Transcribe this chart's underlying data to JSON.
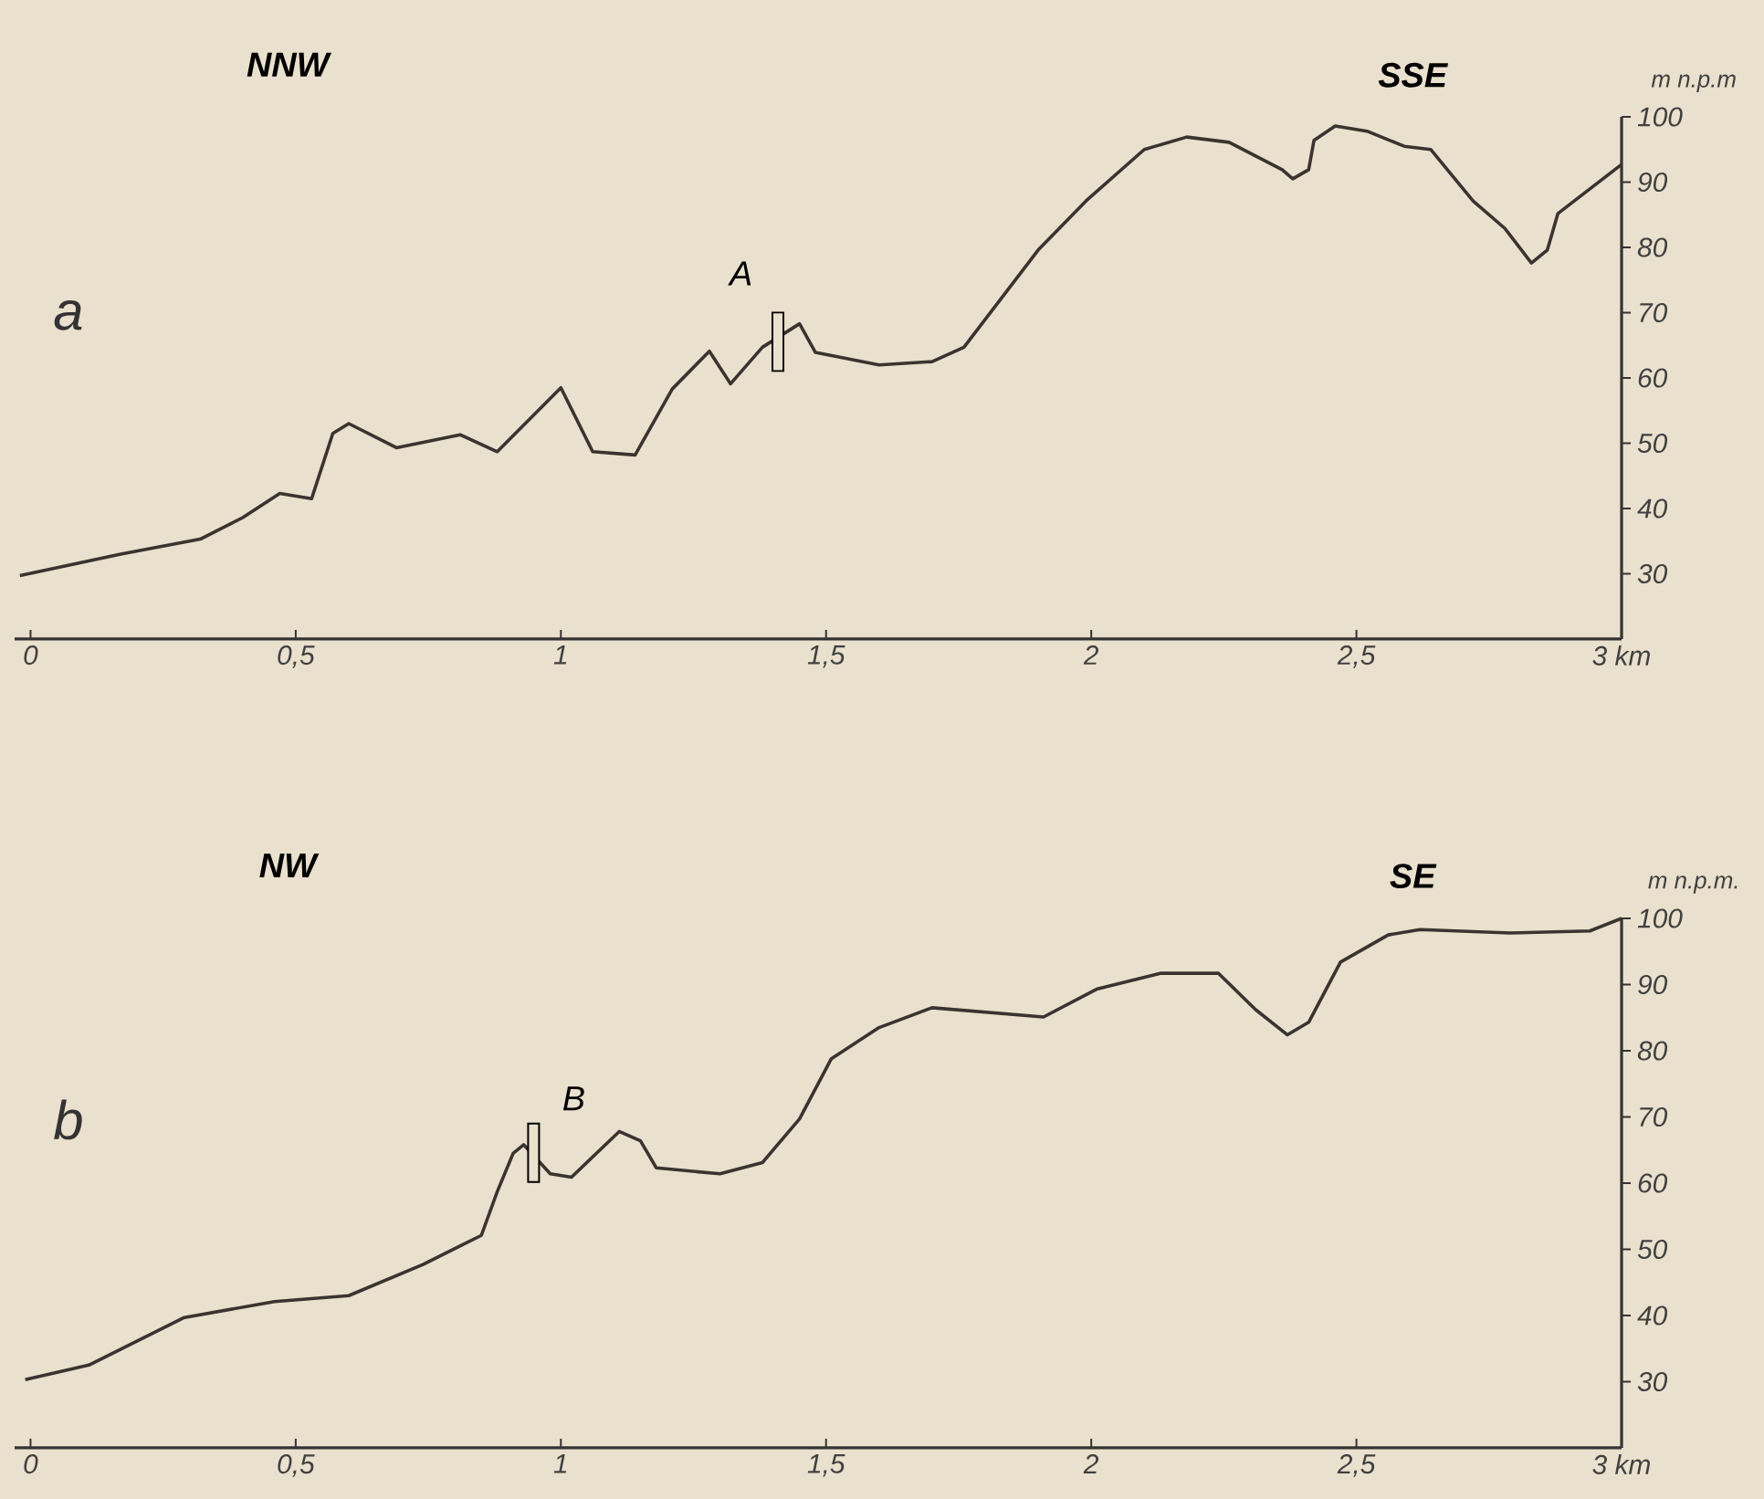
{
  "chart_data": [
    {
      "type": "line",
      "title": "a",
      "ylabel": "m n.p.m",
      "annotations": [
        "NNW",
        "SSE",
        "A"
      ],
      "xlim": [
        -0.03,
        3
      ],
      "ylim": [
        20,
        100
      ],
      "xticks": [
        0,
        {
          "value": 0.5,
          "label": "0,5"
        },
        1,
        {
          "value": 1.5,
          "label": "1,5"
        },
        2,
        {
          "value": 2.5,
          "label": "2,5"
        },
        {
          "value": 3,
          "label": "3 km"
        }
      ],
      "yticks": [
        30,
        40,
        50,
        60,
        70,
        80,
        90,
        100
      ],
      "series": [
        {
          "color": "#3a3330",
          "x": [
            -0.02,
            0.17,
            0.32,
            0.4,
            0.47,
            0.53,
            0.57,
            0.6,
            0.69,
            0.81,
            0.88,
            1.0,
            1.06,
            1.14,
            1.21,
            1.28,
            1.32,
            1.38,
            1.45,
            1.48,
            1.6,
            1.7,
            1.76,
            1.9,
            1.99,
            2.1,
            2.18,
            2.26,
            2.36,
            2.38,
            2.41,
            2.42,
            2.46,
            2.52,
            2.59,
            2.64,
            2.72,
            2.78,
            2.83,
            2.86,
            2.88,
            3.0
          ],
          "values": [
            29.7,
            33.0,
            35.3,
            38.6,
            42.3,
            41.5,
            51.5,
            53.0,
            49.3,
            51.3,
            48.7,
            58.5,
            48.7,
            48.2,
            58.3,
            64.1,
            59.1,
            64.7,
            68.3,
            63.9,
            62.0,
            62.5,
            64.7,
            79.6,
            87.1,
            95.0,
            96.9,
            96.1,
            91.9,
            90.5,
            91.9,
            96.4,
            98.6,
            97.8,
            95.5,
            95.0,
            87.1,
            82.9,
            77.6,
            79.6,
            85.2,
            92.7
          ]
        }
      ]
    },
    {
      "type": "line",
      "title": "b",
      "ylabel": "m n.p.m.",
      "annotations": [
        "NW",
        "SE",
        "B"
      ],
      "xlim": [
        -0.03,
        3
      ],
      "ylim": [
        20,
        100
      ],
      "xticks": [
        0,
        {
          "value": 0.5,
          "label": "0,5"
        },
        1,
        {
          "value": 1.5,
          "label": "1,5"
        },
        2,
        {
          "value": 2.5,
          "label": "2,5"
        },
        {
          "value": 3,
          "label": "3 km"
        }
      ],
      "yticks": [
        30,
        40,
        50,
        60,
        70,
        80,
        90,
        100
      ],
      "series": [
        {
          "color": "#3a3330",
          "x": [
            -0.01,
            0.11,
            0.29,
            0.46,
            0.6,
            0.74,
            0.85,
            0.88,
            0.91,
            0.93,
            0.98,
            1.02,
            1.11,
            1.15,
            1.18,
            1.3,
            1.38,
            1.45,
            1.51,
            1.6,
            1.7,
            1.91,
            2.01,
            2.13,
            2.24,
            2.31,
            2.37,
            2.41,
            2.47,
            2.56,
            2.62,
            2.79,
            2.94,
            3.0
          ],
          "values": [
            30.3,
            32.5,
            39.7,
            42.1,
            43.0,
            47.7,
            52.1,
            58.7,
            64.5,
            65.8,
            61.4,
            60.9,
            67.8,
            66.4,
            62.3,
            61.4,
            63.1,
            69.7,
            78.8,
            83.5,
            86.5,
            85.1,
            89.3,
            91.7,
            91.7,
            86.2,
            82.4,
            84.3,
            93.4,
            97.5,
            98.3,
            97.8,
            98.1,
            100
          ]
        }
      ]
    }
  ]
}
